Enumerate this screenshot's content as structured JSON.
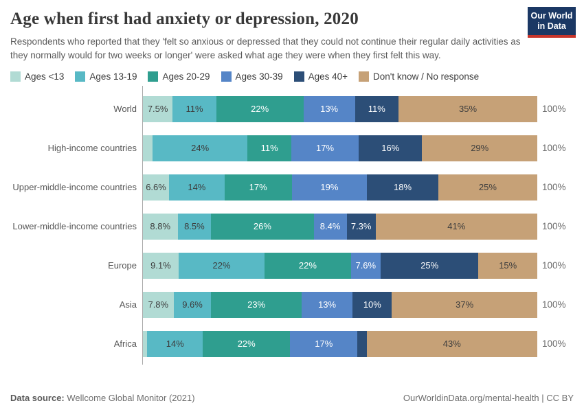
{
  "header": {
    "title": "Age when first had anxiety or depression, 2020",
    "subtitle": "Respondents who reported that they 'felt so anxious or depressed that they could not continue their regular daily activities as they normally would for two weeks or longer' were asked what age they were when they first felt this way.",
    "logo": {
      "line1": "Our World",
      "line2": "in Data",
      "bg_color": "#1b3864",
      "stripe_color": "#c7352b"
    }
  },
  "legend": [
    {
      "label": "Ages <13",
      "color": "#b1dbd4"
    },
    {
      "label": "Ages 13-19",
      "color": "#58b9c5"
    },
    {
      "label": "Ages 20-29",
      "color": "#2f9e8f"
    },
    {
      "label": "Ages 30-39",
      "color": "#5585c7"
    },
    {
      "label": "Ages 40+",
      "color": "#2c4e77"
    },
    {
      "label": "Don't know / No response",
      "color": "#c6a177"
    }
  ],
  "chart_data": {
    "type": "bar",
    "stacked": true,
    "orientation": "horizontal",
    "x_range": [
      0,
      100
    ],
    "value_suffix": "%",
    "total_label": "100%",
    "dark_label_color": "#3d3d3d",
    "light_label_color": "#ffffff",
    "series_names": [
      "Ages <13",
      "Ages 13-19",
      "Ages 20-29",
      "Ages 30-39",
      "Ages 40+",
      "Don't know / No response"
    ],
    "categories": [
      "World",
      "High-income countries",
      "Upper-middle-income countries",
      "Lower-middle-income countries",
      "Europe",
      "Asia",
      "Africa"
    ],
    "rows": [
      {
        "category": "World",
        "values": [
          7.5,
          11,
          22,
          13,
          11,
          35
        ],
        "labels": [
          "7.5%",
          "11%",
          "22%",
          "13%",
          "11%",
          "35%"
        ]
      },
      {
        "category": "High-income countries",
        "values": [
          2.4,
          24,
          11,
          17,
          16,
          29
        ],
        "labels": [
          "",
          "24%",
          "11%",
          "17%",
          "16%",
          "29%"
        ]
      },
      {
        "category": "Upper-middle-income countries",
        "values": [
          6.6,
          14,
          17,
          19,
          18,
          25
        ],
        "labels": [
          "6.6%",
          "14%",
          "17%",
          "19%",
          "18%",
          "25%"
        ]
      },
      {
        "category": "Lower-middle-income countries",
        "values": [
          8.8,
          8.5,
          26,
          8.4,
          7.3,
          41
        ],
        "labels": [
          "8.8%",
          "8.5%",
          "26%",
          "8.4%",
          "7.3%",
          "41%"
        ]
      },
      {
        "category": "Europe",
        "values": [
          9.1,
          22,
          22,
          7.6,
          25,
          15
        ],
        "labels": [
          "9.1%",
          "22%",
          "22%",
          "7.6%",
          "25%",
          "15%"
        ]
      },
      {
        "category": "Asia",
        "values": [
          7.8,
          9.6,
          23,
          13,
          10,
          37
        ],
        "labels": [
          "7.8%",
          "9.6%",
          "23%",
          "13%",
          "10%",
          "37%"
        ]
      },
      {
        "category": "Africa",
        "values": [
          1.1,
          14,
          22,
          17,
          2.3,
          43
        ],
        "labels": [
          "",
          "14%",
          "22%",
          "17%",
          "",
          "43%"
        ]
      }
    ]
  },
  "footer": {
    "source_label": "Data source:",
    "source_value": " Wellcome Global Monitor (2021)",
    "right_text": "OurWorldinData.org/mental-health | CC BY"
  }
}
